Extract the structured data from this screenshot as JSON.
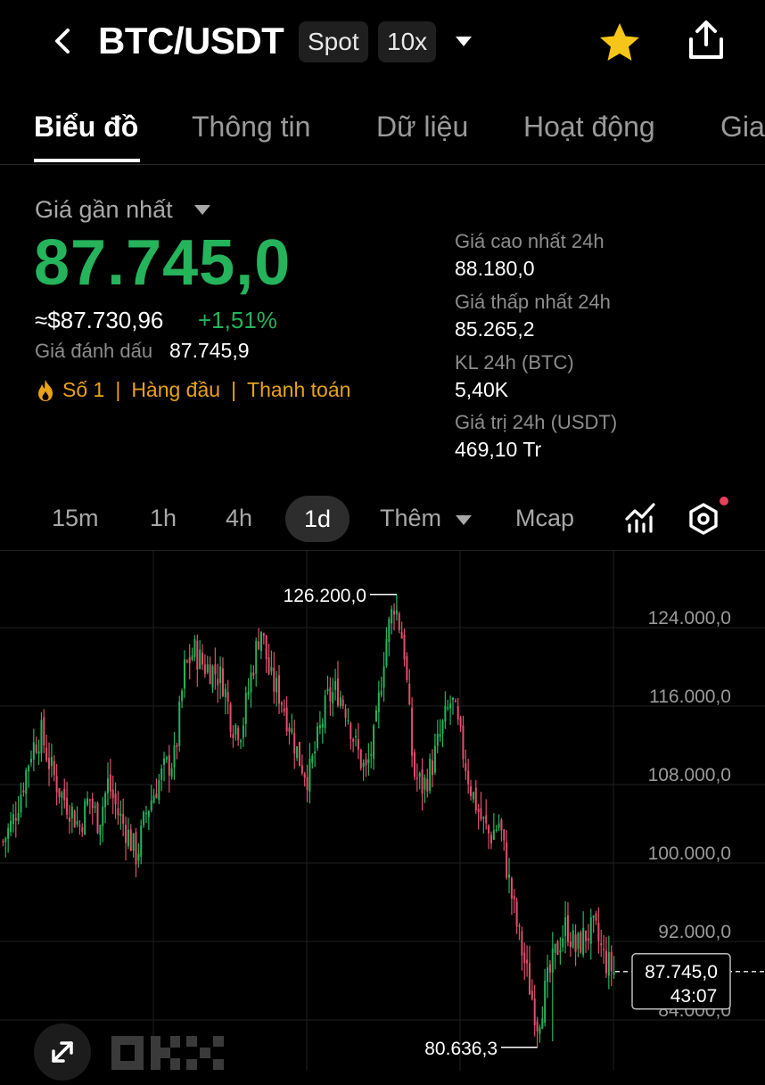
{
  "header": {
    "pair": "BTC/USDT",
    "market_chip": "Spot",
    "leverage_chip": "10x",
    "icons": [
      "back-arrow-icon",
      "chevron-down-icon",
      "star-icon",
      "share-icon"
    ],
    "star_color": "#f5c518"
  },
  "tabs": [
    {
      "label": "Biểu đồ",
      "active": true
    },
    {
      "label": "Thông tin",
      "active": false
    },
    {
      "label": "Dữ liệu",
      "active": false
    },
    {
      "label": "Hoạt động",
      "active": false
    },
    {
      "label": "Gia",
      "active": false
    }
  ],
  "price": {
    "label": "Giá gần nhất",
    "last": "87.745,0",
    "approx_usd": "≈$87.730,96",
    "change_pct": "+1,51%",
    "mark_label": "Giá đánh dấu",
    "mark_value": "87.745,9",
    "up_color": "#25b35b"
  },
  "tags": {
    "rank": "Số 1",
    "top": "Hàng đầu",
    "payment": "Thanh toán",
    "icon": "fire-icon",
    "color": "#e8a317"
  },
  "stats": [
    {
      "label": "Giá cao nhất 24h",
      "value": "88.180,0"
    },
    {
      "label": "Giá thấp nhất 24h",
      "value": "85.265,2"
    },
    {
      "label": "KL 24h (BTC)",
      "value": "5,40K"
    },
    {
      "label": "Giá trị 24h (USDT)",
      "value": "469,10 Tr"
    }
  ],
  "intervals": {
    "items": [
      "15m",
      "1h",
      "4h",
      "1d"
    ],
    "active": "1d",
    "more": "Thêm",
    "mcap": "Mcap",
    "icons": [
      "indicators-icon",
      "chart-settings-icon"
    ]
  },
  "chart_data": {
    "type": "candlestick",
    "interval": "1d",
    "y_ticks": [
      "124.000,0",
      "116.000,0",
      "108.000,0",
      "100.000,0",
      "92.000,0",
      "84.000,0"
    ],
    "ylim": [
      79000,
      130000
    ],
    "high_label": "126.200,0",
    "low_label": "80.636,3",
    "current_price_label": "87.745,0",
    "countdown": "43:07",
    "up_color": "#25b35b",
    "down_color": "#e0506c",
    "closes": [
      101000,
      103000,
      106500,
      110500,
      112000,
      108500,
      106000,
      104500,
      102500,
      105500,
      103000,
      107000,
      104000,
      102000,
      99500,
      104000,
      106500,
      108500,
      109500,
      118500,
      120500,
      119000,
      118500,
      117500,
      113000,
      112500,
      118000,
      123000,
      117500,
      116000,
      113000,
      109500,
      107500,
      111500,
      115500,
      116500,
      114500,
      110500,
      108000,
      112000,
      121000,
      125500,
      121000,
      108000,
      106500,
      109000,
      112500,
      115500,
      111000,
      106500,
      103500,
      101500,
      103000,
      97000,
      91500,
      87000,
      82500,
      86500,
      90000,
      92500,
      90000,
      91500,
      92000,
      89000,
      87745
    ]
  },
  "branding": {
    "logo": "okx-logo",
    "expand_icon": "expand-icon"
  }
}
